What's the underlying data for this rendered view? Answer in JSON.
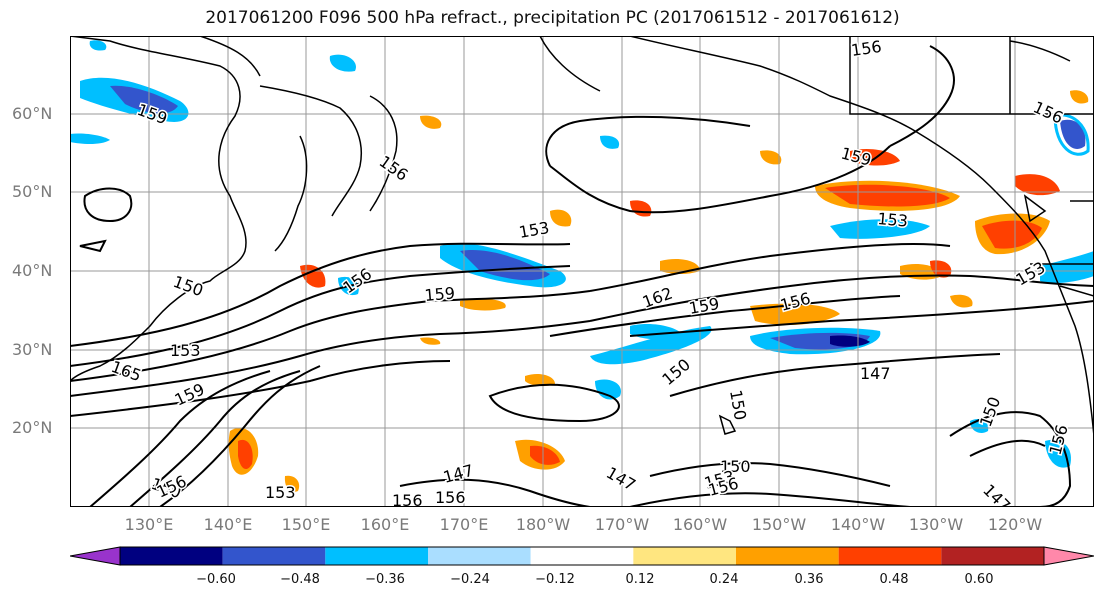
{
  "title": "2017061200 F096 500 hPa refract., precipitation PC (2017061512 - 2017061612)",
  "lat_labels": [
    "60°N",
    "50°N",
    "40°N",
    "30°N",
    "20°N"
  ],
  "lon_labels": [
    "130°E",
    "140°E",
    "150°E",
    "160°E",
    "170°E",
    "180°W",
    "170°W",
    "160°W",
    "150°W",
    "140°W",
    "130°W",
    "120°W"
  ],
  "colorbar": {
    "ticks": [
      "−0.60",
      "−0.48",
      "−0.36",
      "−0.24",
      "−0.12",
      "0.12",
      "0.24",
      "0.36",
      "0.48",
      "0.60"
    ],
    "tick_values": [
      -0.6,
      -0.48,
      -0.36,
      -0.24,
      -0.12,
      0.12,
      0.24,
      0.36,
      0.48,
      0.6
    ],
    "colors": [
      "#9933cc",
      "#000080",
      "#3355cc",
      "#00bfff",
      "#aadeff",
      "#ffffff",
      "#ffe680",
      "#ffa000",
      "#ff4000",
      "#b22222",
      "#ff88aa"
    ],
    "extend": "both"
  },
  "contour_labels": [
    {
      "text": "156"
    },
    {
      "text": "159"
    },
    {
      "text": "156"
    },
    {
      "text": "156"
    },
    {
      "text": "159"
    },
    {
      "text": "153"
    },
    {
      "text": "153"
    },
    {
      "text": "150"
    },
    {
      "text": "156"
    },
    {
      "text": "159"
    },
    {
      "text": "162"
    },
    {
      "text": "159"
    },
    {
      "text": "156"
    },
    {
      "text": "153"
    },
    {
      "text": "165"
    },
    {
      "text": "153"
    },
    {
      "text": "159"
    },
    {
      "text": "150"
    },
    {
      "text": "147"
    },
    {
      "text": "150"
    },
    {
      "text": "147"
    },
    {
      "text": "150"
    },
    {
      "text": "153"
    },
    {
      "text": "156"
    },
    {
      "text": "147"
    },
    {
      "text": "150"
    },
    {
      "text": "156"
    },
    {
      "text": "153"
    },
    {
      "text": "156"
    },
    {
      "text": "156"
    },
    {
      "text": "150"
    },
    {
      "text": "156"
    },
    {
      "text": "147"
    }
  ],
  "map": {
    "extent": "120°E–110°W, 10°N–70°N",
    "grid": true,
    "contour_field": "500 hPa refractivity",
    "shaded_field": "precipitation PC"
  }
}
